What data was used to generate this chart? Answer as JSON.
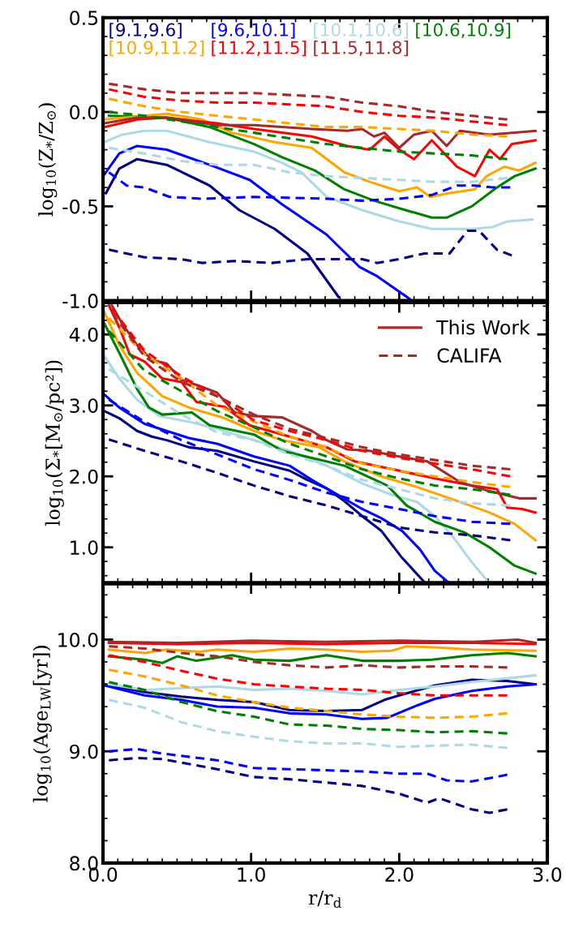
{
  "chart_data": [
    {
      "type": "line",
      "ylabel": "log$_{10}$(Z$_{*}$/Z$_{⊙}$)",
      "xlim": [
        0,
        3
      ],
      "xticks": [
        {
          "value": 0,
          "label": null
        },
        {
          "value": 1,
          "label": null
        },
        {
          "value": 2,
          "label": null
        },
        {
          "value": 3,
          "label": null
        }
      ],
      "ylim": [
        -1,
        0.5
      ],
      "yticks": [
        {
          "value": -1,
          "label": "-1.0"
        },
        {
          "value": -0.5,
          "label": "-0.5"
        },
        {
          "value": 0,
          "label": "0.0"
        },
        {
          "value": 0.5,
          "label": "0.5"
        }
      ],
      "tick_labels": "y",
      "grid": false,
      "legend": "top",
      "marker": "none",
      "series": [
        {
          "name": "[9.1,9.6]",
          "color": "#000080",
          "line_style": "solid",
          "x": [
            0.02,
            0.11,
            0.23,
            0.43,
            0.72,
            0.92,
            1.16,
            1.38,
            1.59
          ],
          "values": [
            -0.43,
            -0.3,
            -0.25,
            -0.28,
            -0.39,
            -0.52,
            -0.62,
            -0.75,
            -0.98
          ]
        },
        {
          "name": "[9.6,10.1]",
          "color": "#0000ff",
          "line_style": "solid",
          "x": [
            0.01,
            0.11,
            0.23,
            0.43,
            0.72,
            0.99,
            1.21,
            1.51,
            1.73,
            1.85,
            2.07
          ],
          "values": [
            -0.33,
            -0.22,
            -0.18,
            -0.2,
            -0.28,
            -0.36,
            -0.49,
            -0.65,
            -0.82,
            -0.87,
            -0.99
          ]
        },
        {
          "name": "[10.1,10.6]",
          "color": "#add8e6",
          "line_style": "solid",
          "x": [
            0.01,
            0.13,
            0.28,
            0.43,
            0.72,
            1.02,
            1.21,
            1.34,
            1.51,
            1.75,
            2.0,
            2.22,
            2.49,
            2.63,
            2.73,
            2.9
          ],
          "values": [
            -0.16,
            -0.12,
            -0.1,
            -0.1,
            -0.16,
            -0.21,
            -0.27,
            -0.32,
            -0.45,
            -0.52,
            -0.58,
            -0.62,
            -0.62,
            -0.61,
            -0.58,
            -0.57
          ]
        },
        {
          "name": "[10.6,10.9]",
          "color": "#008000",
          "line_style": "solid",
          "x": [
            0.04,
            0.43,
            0.72,
            1.02,
            1.21,
            1.43,
            1.63,
            1.83,
            2.0,
            2.22,
            2.32,
            2.49,
            2.66,
            2.78,
            2.92
          ],
          "values": [
            -0.02,
            -0.03,
            -0.08,
            -0.17,
            -0.24,
            -0.31,
            -0.41,
            -0.47,
            -0.51,
            -0.56,
            -0.56,
            -0.5,
            -0.4,
            -0.34,
            -0.3
          ]
        },
        {
          "name": "[10.9,11.2]",
          "color": "#ffa500",
          "line_style": "solid",
          "x": [
            0.01,
            0.28,
            0.43,
            0.67,
            0.87,
            1.16,
            1.41,
            1.63,
            1.8,
            2.0,
            2.12,
            2.21,
            2.34,
            2.51,
            2.59,
            2.71,
            2.81,
            2.92
          ],
          "values": [
            -0.04,
            -0.02,
            -0.01,
            -0.04,
            -0.11,
            -0.16,
            -0.19,
            -0.32,
            -0.37,
            -0.42,
            -0.4,
            -0.45,
            -0.43,
            -0.41,
            -0.34,
            -0.29,
            -0.31,
            -0.27
          ]
        },
        {
          "name": "[11.2,11.5]",
          "color": "#ff0000",
          "line_style": "solid",
          "x": [
            0.01,
            0.23,
            0.43,
            0.77,
            1.02,
            1.41,
            1.65,
            1.8,
            1.9,
            2.0,
            2.1,
            2.22,
            2.39,
            2.51,
            2.61,
            2.68,
            2.76,
            2.92
          ],
          "values": [
            -0.08,
            -0.04,
            -0.03,
            -0.06,
            -0.09,
            -0.13,
            -0.18,
            -0.2,
            -0.13,
            -0.2,
            -0.25,
            -0.15,
            -0.29,
            -0.34,
            -0.2,
            -0.25,
            -0.17,
            -0.15
          ]
        },
        {
          "name": "[11.5,11.8]",
          "color": "#a52a2a",
          "line_style": "solid",
          "x": [
            0.01,
            0.23,
            0.43,
            0.77,
            1.02,
            1.41,
            1.65,
            1.75,
            1.83,
            1.9,
            2.0,
            2.1,
            2.22,
            2.32,
            2.41,
            2.61,
            2.92
          ],
          "values": [
            -0.06,
            -0.03,
            -0.03,
            -0.07,
            -0.07,
            -0.09,
            -0.1,
            -0.09,
            -0.13,
            -0.11,
            -0.19,
            -0.12,
            -0.1,
            -0.18,
            -0.1,
            -0.12,
            -0.1
          ]
        },
        {
          "color": "#000080",
          "line_style": "dashed",
          "x": [
            0.04,
            0.28,
            0.53,
            0.67,
            0.89,
            1.14,
            1.38,
            1.75,
            1.85,
            2.0,
            2.17,
            2.34,
            2.46,
            2.54,
            2.66,
            2.76
          ],
          "values": [
            -0.73,
            -0.77,
            -0.78,
            -0.8,
            -0.79,
            -0.8,
            -0.78,
            -0.78,
            -0.8,
            -0.78,
            -0.75,
            -0.75,
            -0.63,
            -0.63,
            -0.73,
            -0.76
          ]
        },
        {
          "color": "#0000ff",
          "line_style": "dashed",
          "x": [
            0.04,
            0.16,
            0.28,
            0.45,
            0.67,
            1.02,
            1.51,
            1.75,
            2.0,
            2.22,
            2.39,
            2.51,
            2.63,
            2.75
          ],
          "values": [
            -0.32,
            -0.39,
            -0.4,
            -0.45,
            -0.46,
            -0.45,
            -0.46,
            -0.47,
            -0.46,
            -0.44,
            -0.39,
            -0.39,
            -0.4,
            -0.4
          ]
        },
        {
          "color": "#add8e6",
          "line_style": "dashed",
          "x": [
            0.04,
            0.28,
            0.53,
            0.77,
            1.02,
            1.26,
            1.51,
            1.75,
            2.0,
            2.24,
            2.49,
            2.73
          ],
          "values": [
            -0.19,
            -0.22,
            -0.26,
            -0.28,
            -0.28,
            -0.32,
            -0.34,
            -0.35,
            -0.36,
            -0.37,
            -0.37,
            -0.35
          ]
        },
        {
          "color": "#008000",
          "line_style": "dashed",
          "x": [
            0.04,
            0.28,
            0.53,
            0.77,
            1.02,
            1.26,
            1.51,
            1.75,
            2.0,
            2.24,
            2.49,
            2.73
          ],
          "values": [
            0.0,
            -0.02,
            -0.05,
            -0.08,
            -0.11,
            -0.14,
            -0.17,
            -0.19,
            -0.21,
            -0.22,
            -0.23,
            -0.25
          ]
        },
        {
          "color": "#ffa500",
          "line_style": "dashed",
          "x": [
            0.04,
            0.28,
            0.53,
            0.77,
            1.02,
            1.26,
            1.51,
            1.75,
            2.0,
            2.24,
            2.49,
            2.73
          ],
          "values": [
            0.07,
            0.03,
            0.0,
            -0.02,
            -0.04,
            -0.06,
            -0.08,
            -0.08,
            -0.09,
            -0.1,
            -0.12,
            -0.13
          ]
        },
        {
          "color": "#ff0000",
          "line_style": "dashed",
          "x": [
            0.04,
            0.28,
            0.53,
            0.77,
            1.02,
            1.26,
            1.51,
            1.75,
            2.0,
            2.24,
            2.49,
            2.73
          ],
          "values": [
            0.12,
            0.08,
            0.06,
            0.05,
            0.05,
            0.04,
            0.03,
            0.0,
            -0.02,
            -0.03,
            -0.05,
            -0.07
          ]
        },
        {
          "color": "#a52a2a",
          "line_style": "dashed",
          "x": [
            0.04,
            0.28,
            0.53,
            0.77,
            1.02,
            1.26,
            1.51,
            1.75,
            2.0,
            2.24,
            2.49,
            2.73
          ],
          "values": [
            0.15,
            0.12,
            0.1,
            0.1,
            0.1,
            0.09,
            0.08,
            0.05,
            0.03,
            0.0,
            -0.02,
            -0.04
          ]
        }
      ]
    },
    {
      "type": "line",
      "ylabel": "log$_{10}$(Σ$_{*}$[M$_{⊙}$/pc²])",
      "xlim": [
        0,
        3
      ],
      "xticks": [
        {
          "value": 0,
          "label": null
        },
        {
          "value": 1,
          "label": null
        },
        {
          "value": 2,
          "label": null
        },
        {
          "value": 3,
          "label": null
        }
      ],
      "ylim": [
        0.5,
        4.45
      ],
      "yticks": [
        {
          "value": 1,
          "label": "1.0"
        },
        {
          "value": 2,
          "label": "2.0"
        },
        {
          "value": 3,
          "label": "3.0"
        },
        {
          "value": 4,
          "label": "4.0"
        }
      ],
      "tick_labels": "y",
      "grid": false,
      "legend": "top right",
      "marker": "none",
      "series": [
        {
          "color": "#000080",
          "line_style": "solid",
          "x": [
            0.01,
            0.11,
            0.23,
            0.33,
            0.43,
            0.58,
            0.77,
            1.02,
            1.26,
            1.38,
            1.51,
            1.63,
            1.75,
            1.88,
            2.02,
            2.17
          ],
          "values": [
            2.92,
            2.82,
            2.64,
            2.56,
            2.51,
            2.41,
            2.36,
            2.21,
            2.08,
            1.95,
            1.83,
            1.65,
            1.44,
            1.23,
            0.85,
            0.51
          ]
        },
        {
          "color": "#0000ff",
          "line_style": "solid",
          "x": [
            0.01,
            0.11,
            0.28,
            0.43,
            0.58,
            0.77,
            1.02,
            1.26,
            1.41,
            1.56,
            1.75,
            1.88,
            2.02,
            2.14,
            2.24,
            2.33
          ],
          "values": [
            3.15,
            2.97,
            2.74,
            2.64,
            2.54,
            2.46,
            2.28,
            2.15,
            1.95,
            1.77,
            1.54,
            1.41,
            1.23,
            0.97,
            0.67,
            0.51
          ]
        },
        {
          "color": "#add8e6",
          "line_style": "solid",
          "x": [
            0.01,
            0.11,
            0.23,
            0.38,
            0.58,
            0.77,
            1.02,
            1.26,
            1.51,
            1.75,
            1.95,
            2.12,
            2.24,
            2.37,
            2.49,
            2.59
          ],
          "values": [
            3.69,
            3.38,
            3.08,
            2.85,
            2.77,
            2.67,
            2.51,
            2.36,
            2.15,
            1.9,
            1.74,
            1.64,
            1.44,
            1.13,
            0.79,
            0.54
          ]
        },
        {
          "color": "#008000",
          "line_style": "solid",
          "x": [
            0.01,
            0.11,
            0.23,
            0.31,
            0.4,
            0.6,
            0.72,
            1.02,
            1.21,
            1.41,
            1.63,
            1.92,
            2.05,
            2.24,
            2.44,
            2.61,
            2.78,
            2.92
          ],
          "values": [
            4.15,
            3.74,
            3.23,
            2.97,
            2.87,
            2.9,
            2.72,
            2.59,
            2.36,
            2.26,
            2.15,
            1.87,
            1.59,
            1.36,
            1.21,
            1.0,
            0.74,
            0.63
          ]
        },
        {
          "color": "#ffa500",
          "line_style": "solid",
          "x": [
            0.01,
            0.11,
            0.23,
            0.4,
            0.58,
            0.82,
            1.02,
            1.21,
            1.46,
            1.63,
            1.88,
            2.12,
            2.37,
            2.61,
            2.78,
            2.92
          ],
          "values": [
            4.31,
            3.85,
            3.46,
            3.13,
            2.97,
            2.82,
            2.64,
            2.51,
            2.41,
            2.21,
            2.0,
            1.85,
            1.67,
            1.49,
            1.33,
            1.1
          ]
        },
        {
          "color": "#ff0000",
          "line_style": "solid",
          "x": [
            0.04,
            0.11,
            0.18,
            0.28,
            0.4,
            0.53,
            0.63,
            0.82,
            0.99,
            1.26,
            1.51,
            1.7,
            2.0,
            2.24,
            2.49,
            2.66,
            2.73,
            2.83,
            2.92
          ],
          "values": [
            4.41,
            4.1,
            3.72,
            3.62,
            3.38,
            3.33,
            3.05,
            2.98,
            2.72,
            2.56,
            2.41,
            2.21,
            2.08,
            1.97,
            1.87,
            1.82,
            1.56,
            1.54,
            1.49
          ]
        },
        {
          "name": "This Work",
          "color": "#a52a2a",
          "line_style": "solid",
          "x": [
            0.06,
            0.13,
            0.23,
            0.33,
            0.43,
            0.53,
            0.67,
            0.77,
            0.89,
            1.02,
            1.21,
            1.41,
            1.51,
            1.65,
            1.8,
            2.0,
            2.19,
            2.41,
            2.61,
            2.81,
            2.92
          ],
          "values": [
            4.41,
            4.15,
            3.85,
            3.64,
            3.59,
            3.36,
            3.26,
            3.18,
            2.9,
            2.85,
            2.83,
            2.64,
            2.51,
            2.38,
            2.36,
            2.28,
            2.21,
            1.92,
            1.79,
            1.69,
            1.69
          ]
        },
        {
          "color": "#000080",
          "line_style": "dashed",
          "x": [
            0.04,
            0.28,
            0.53,
            0.77,
            1.02,
            1.26,
            1.51,
            1.75,
            2.0,
            2.24,
            2.49,
            2.75
          ],
          "values": [
            2.52,
            2.36,
            2.21,
            2.05,
            1.87,
            1.72,
            1.59,
            1.44,
            1.28,
            1.21,
            1.17,
            1.1
          ]
        },
        {
          "color": "#0000ff",
          "line_style": "dashed",
          "x": [
            0.04,
            0.28,
            0.53,
            0.77,
            1.02,
            1.26,
            1.51,
            1.75,
            2.0,
            2.24,
            2.49,
            2.75
          ],
          "values": [
            3.08,
            2.77,
            2.51,
            2.31,
            2.1,
            1.95,
            1.77,
            1.64,
            1.54,
            1.44,
            1.36,
            1.33
          ]
        },
        {
          "color": "#add8e6",
          "line_style": "dashed",
          "x": [
            0.04,
            0.28,
            0.53,
            0.77,
            1.02,
            1.26,
            1.51,
            1.75,
            2.0,
            2.24,
            2.49,
            2.75
          ],
          "values": [
            3.51,
            3.2,
            2.87,
            2.62,
            2.51,
            2.31,
            2.15,
            1.95,
            1.82,
            1.69,
            1.62,
            1.59
          ]
        },
        {
          "color": "#008000",
          "line_style": "dashed",
          "x": [
            0.04,
            0.28,
            0.53,
            0.77,
            1.02,
            1.26,
            1.51,
            1.75,
            2.0,
            2.24,
            2.49,
            2.75
          ],
          "values": [
            4.05,
            3.49,
            3.2,
            2.92,
            2.69,
            2.46,
            2.28,
            2.1,
            1.97,
            1.87,
            1.82,
            1.74
          ]
        },
        {
          "color": "#ffa500",
          "line_style": "dashed",
          "x": [
            0.04,
            0.28,
            0.53,
            0.77,
            1.02,
            1.26,
            1.51,
            1.75,
            2.0,
            2.24,
            2.49,
            2.75
          ],
          "values": [
            4.23,
            3.72,
            3.38,
            3.0,
            2.77,
            2.56,
            2.41,
            2.18,
            2.08,
            2.0,
            1.92,
            1.85
          ]
        },
        {
          "color": "#ff0000",
          "line_style": "dashed",
          "x": [
            0.06,
            0.28,
            0.53,
            0.77,
            1.02,
            1.26,
            1.51,
            1.75,
            2.0,
            2.24,
            2.49,
            2.75
          ],
          "values": [
            4.36,
            3.77,
            3.41,
            3.13,
            2.79,
            2.64,
            2.51,
            2.36,
            2.26,
            2.18,
            2.1,
            2.0
          ]
        },
        {
          "name": "CALIFA",
          "color": "#a52a2a",
          "line_style": "dashed",
          "x": [
            0.06,
            0.28,
            0.53,
            0.77,
            1.02,
            1.26,
            1.51,
            1.75,
            2.0,
            2.24,
            2.49,
            2.75
          ],
          "values": [
            4.31,
            3.69,
            3.33,
            3.13,
            2.87,
            2.67,
            2.54,
            2.41,
            2.31,
            2.23,
            2.15,
            2.1
          ]
        }
      ]
    },
    {
      "type": "line",
      "ylabel": "log$_{10}$(Age$_{LW}$[yr])",
      "xlabel": "r/r$_{d}$",
      "xlim": [
        0,
        3
      ],
      "xticks": [
        {
          "value": 0,
          "label": "0.0"
        },
        {
          "value": 1,
          "label": "1.0"
        },
        {
          "value": 2,
          "label": "2.0"
        },
        {
          "value": 3,
          "label": "3.0"
        }
      ],
      "ylim": [
        8,
        10.5
      ],
      "yticks": [
        {
          "value": 8,
          "label": "8.0"
        },
        {
          "value": 9,
          "label": "9.0"
        },
        {
          "value": 10,
          "label": "10.0"
        }
      ],
      "grid": false,
      "marker": "none",
      "series": [
        {
          "color": "#000080",
          "line_style": "solid",
          "x": [
            0.01,
            0.28,
            0.53,
            0.77,
            1.02,
            1.26,
            1.51,
            1.75,
            1.9,
            2.0,
            2.24,
            2.49,
            2.73,
            2.92
          ],
          "values": [
            9.6,
            9.53,
            9.49,
            9.46,
            9.44,
            9.37,
            9.36,
            9.37,
            9.46,
            9.5,
            9.59,
            9.64,
            9.63,
            9.6
          ]
        },
        {
          "color": "#0000ff",
          "line_style": "solid",
          "x": [
            0.01,
            0.28,
            0.53,
            0.77,
            1.02,
            1.26,
            1.51,
            1.75,
            1.92,
            2.12,
            2.24,
            2.49,
            2.73,
            2.92
          ],
          "values": [
            9.59,
            9.5,
            9.46,
            9.4,
            9.39,
            9.34,
            9.33,
            9.29,
            9.3,
            9.41,
            9.47,
            9.54,
            9.58,
            9.6
          ]
        },
        {
          "color": "#add8e6",
          "line_style": "solid",
          "x": [
            0.04,
            0.28,
            0.77,
            1.02,
            1.26,
            1.51,
            1.75,
            2.0,
            2.24,
            2.49,
            2.92
          ],
          "values": [
            9.6,
            9.55,
            9.58,
            9.55,
            9.56,
            9.54,
            9.51,
            9.55,
            9.58,
            9.62,
            9.68
          ]
        },
        {
          "color": "#008000",
          "line_style": "solid",
          "x": [
            0.04,
            0.28,
            0.4,
            0.5,
            0.63,
            0.87,
            1.02,
            1.26,
            1.51,
            1.75,
            2.0,
            2.22,
            2.49,
            2.73,
            2.92
          ],
          "values": [
            9.85,
            9.82,
            9.79,
            9.85,
            9.81,
            9.86,
            9.82,
            9.81,
            9.86,
            9.81,
            9.81,
            9.82,
            9.86,
            9.88,
            9.85
          ]
        },
        {
          "color": "#ffa500",
          "line_style": "solid",
          "x": [
            0.04,
            0.28,
            0.43,
            0.65,
            0.77,
            1.02,
            1.26,
            1.51,
            1.75,
            1.95,
            2.05,
            2.24,
            2.49,
            2.92
          ],
          "values": [
            9.91,
            9.88,
            9.91,
            9.89,
            9.91,
            9.89,
            9.92,
            9.91,
            9.89,
            9.9,
            9.94,
            9.93,
            9.91,
            9.9
          ]
        },
        {
          "color": "#ff0000",
          "line_style": "solid",
          "x": [
            0.04,
            0.5,
            1.0,
            1.5,
            2.0,
            2.5,
            2.92
          ],
          "values": [
            9.97,
            9.96,
            9.97,
            9.96,
            9.97,
            9.97,
            9.96
          ]
        },
        {
          "color": "#a52a2a",
          "line_style": "solid",
          "x": [
            0.04,
            0.5,
            1.0,
            1.5,
            2.0,
            2.5,
            2.8,
            2.92
          ],
          "values": [
            9.98,
            9.97,
            9.99,
            9.98,
            9.99,
            9.98,
            10.0,
            9.97
          ]
        },
        {
          "color": "#000080",
          "line_style": "dashed",
          "x": [
            0.04,
            0.23,
            0.4,
            0.77,
            1.02,
            1.26,
            1.51,
            1.75,
            2.0,
            2.19,
            2.27,
            2.49,
            2.61,
            2.73
          ],
          "values": [
            8.92,
            8.94,
            8.93,
            8.84,
            8.77,
            8.75,
            8.72,
            8.69,
            8.62,
            8.54,
            8.58,
            8.48,
            8.45,
            8.48
          ]
        },
        {
          "color": "#0000ff",
          "line_style": "dashed",
          "x": [
            0.04,
            0.23,
            0.4,
            0.77,
            1.02,
            1.26,
            1.51,
            1.75,
            2.0,
            2.19,
            2.32,
            2.49,
            2.73
          ],
          "values": [
            9.0,
            9.02,
            8.98,
            8.92,
            8.85,
            8.84,
            8.83,
            8.82,
            8.8,
            8.8,
            8.74,
            8.73,
            8.79
          ]
        },
        {
          "color": "#add8e6",
          "line_style": "dashed",
          "x": [
            0.04,
            0.28,
            0.53,
            0.77,
            1.02,
            1.26,
            1.51,
            1.75,
            2.0,
            2.24,
            2.49,
            2.73
          ],
          "values": [
            9.46,
            9.39,
            9.26,
            9.18,
            9.13,
            9.09,
            9.07,
            9.07,
            9.04,
            9.05,
            9.06,
            9.03
          ]
        },
        {
          "color": "#008000",
          "line_style": "dashed",
          "x": [
            0.04,
            0.28,
            0.53,
            0.77,
            1.02,
            1.26,
            1.51,
            1.75,
            2.0,
            2.24,
            2.49,
            2.73
          ],
          "values": [
            9.62,
            9.55,
            9.44,
            9.36,
            9.31,
            9.24,
            9.23,
            9.2,
            9.19,
            9.17,
            9.18,
            9.16
          ]
        },
        {
          "color": "#ffa500",
          "line_style": "dashed",
          "x": [
            0.04,
            0.28,
            0.53,
            0.77,
            1.02,
            1.26,
            1.51,
            1.75,
            2.0,
            2.24,
            2.49,
            2.73
          ],
          "values": [
            9.73,
            9.67,
            9.59,
            9.5,
            9.44,
            9.39,
            9.36,
            9.33,
            9.31,
            9.3,
            9.31,
            9.34
          ]
        },
        {
          "color": "#ff0000",
          "line_style": "dashed",
          "x": [
            0.04,
            0.28,
            0.53,
            0.77,
            1.02,
            1.26,
            1.51,
            1.75,
            2.0,
            2.24,
            2.49,
            2.73
          ],
          "values": [
            9.86,
            9.8,
            9.72,
            9.65,
            9.6,
            9.58,
            9.56,
            9.55,
            9.52,
            9.5,
            9.5,
            9.5
          ]
        },
        {
          "color": "#a52a2a",
          "line_style": "dashed",
          "x": [
            0.04,
            0.28,
            0.53,
            0.77,
            1.02,
            1.26,
            1.51,
            1.75,
            2.0,
            2.24,
            2.49,
            2.73
          ],
          "values": [
            9.94,
            9.92,
            9.88,
            9.85,
            9.8,
            9.77,
            9.75,
            9.77,
            9.75,
            9.76,
            9.76,
            9.75
          ]
        }
      ]
    }
  ]
}
